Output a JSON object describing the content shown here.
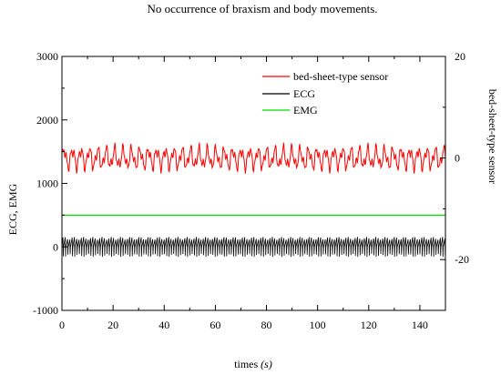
{
  "chart_data": {
    "type": "line",
    "title": "No occurrence of braxism and body movements.",
    "xlabel_main": "times ",
    "xlabel_unit": "(s)",
    "ylabel_left": "ECG, EMG",
    "ylabel_right": "bed-sheet-type sensor",
    "xlim": [
      0,
      150
    ],
    "ylim_left": [
      -1000,
      3000
    ],
    "ylim_right": [
      -30,
      20
    ],
    "x_ticks": [
      0,
      20,
      40,
      60,
      80,
      100,
      120,
      140
    ],
    "x_tick_labels": [
      "0",
      "20",
      "40",
      "60",
      "80",
      "100",
      "120",
      "140"
    ],
    "y_left_ticks": [
      -1000,
      0,
      1000,
      2000,
      3000
    ],
    "y_left_tick_labels": [
      "-1000",
      "0",
      "1000",
      "2000",
      "3000"
    ],
    "y_right_ticks": [
      -20,
      0,
      20
    ],
    "y_right_tick_labels": [
      "-20",
      "0",
      "20"
    ],
    "grid": false,
    "legend_position": "top-right",
    "series": [
      {
        "name": "bed-sheet-type sensor",
        "axis": "right",
        "color": "#ff0000",
        "description_values": {
          "baseline": 0,
          "amplitude": 2,
          "period_s": 3.3
        }
      },
      {
        "name": "ECG",
        "axis": "left",
        "color": "#000000",
        "description_values": {
          "baseline": 0,
          "amplitude": 150,
          "period_s": 0.9
        }
      },
      {
        "name": "EMG",
        "axis": "left",
        "color": "#00dd00",
        "description_values": {
          "baseline": 500,
          "amplitude": 0
        }
      }
    ]
  }
}
